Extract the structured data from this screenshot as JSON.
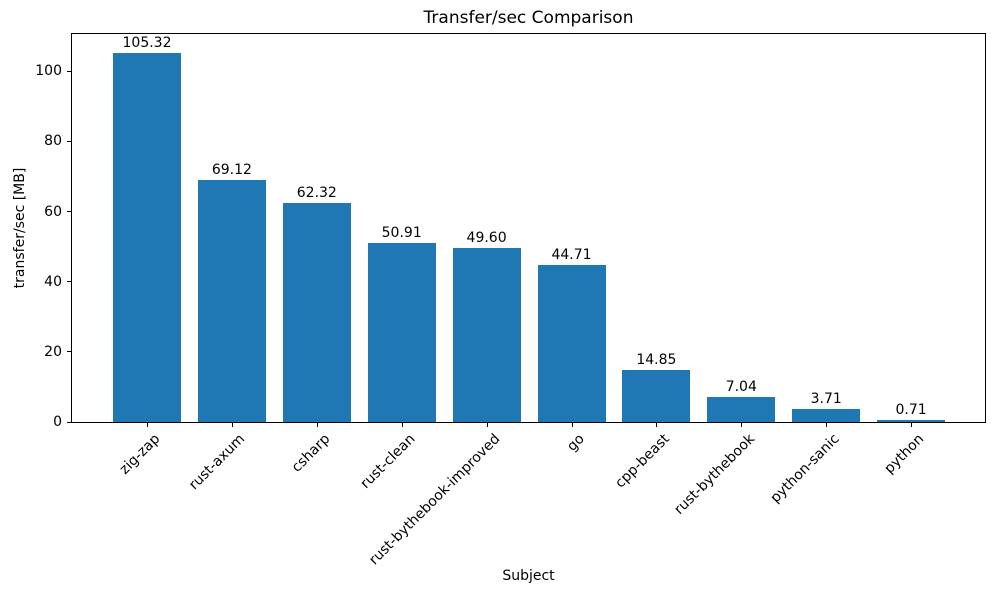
{
  "chart_data": {
    "type": "bar",
    "title": "Transfer/sec Comparison",
    "xlabel": "Subject",
    "ylabel": "transfer/sec [MB]",
    "categories": [
      "zig-zap",
      "rust-axum",
      "csharp",
      "rust-clean",
      "rust-bythebook-improved",
      "go",
      "cpp-beast",
      "rust-bythebook",
      "python-sanic",
      "python"
    ],
    "values": [
      105.32,
      69.12,
      62.32,
      50.91,
      49.6,
      44.71,
      14.85,
      7.04,
      3.71,
      0.71
    ],
    "value_labels": [
      "105.32",
      "69.12",
      "62.32",
      "50.91",
      "49.60",
      "44.71",
      "14.85",
      "7.04",
      "3.71",
      "0.71"
    ],
    "yticks": [
      0,
      20,
      40,
      60,
      80,
      100
    ],
    "ylim": [
      0,
      110.6
    ],
    "bar_color": "#1f77b4",
    "grid": false,
    "legend": "none",
    "x_tick_rotation_deg": 45
  }
}
